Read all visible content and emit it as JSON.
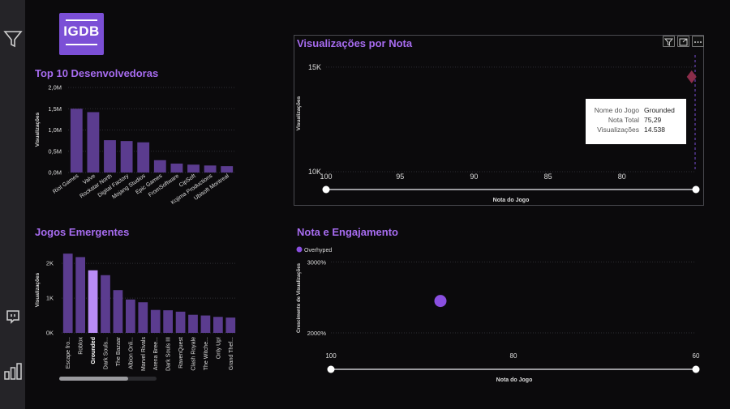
{
  "logo": {
    "text": "IGDB"
  },
  "top_devs": {
    "title": "Top 10 Desenvolvedoras",
    "ylabel": "Visualizações",
    "yticks": [
      "2,0M",
      "1,5M",
      "1,0M",
      "0,5M",
      "0,0M"
    ]
  },
  "emerging": {
    "title": "Jogos Emergentes",
    "ylabel": "Visualizações",
    "yticks": [
      "2K",
      "1K",
      "0K"
    ],
    "highlight_index": 2
  },
  "views_by_score": {
    "title": "Visualizações por Nota",
    "ylabel": "Visualizações",
    "yticks": [
      "15K",
      "10K"
    ],
    "xticks": [
      "100",
      "95",
      "90",
      "85",
      "80"
    ],
    "xlabel": "Nota do Jogo"
  },
  "tooltip": {
    "rows": [
      {
        "key": "Nome do Jogo",
        "value": "Grounded"
      },
      {
        "key": "Nota Total",
        "value": "75,29"
      },
      {
        "key": "Visualizações",
        "value": "14.538"
      }
    ]
  },
  "engagement": {
    "title": "Nota e Engajamento",
    "legend": "Overhyped",
    "ylabel": "Crescimento de Visualizações",
    "yticks": [
      "3000%",
      "2000%"
    ],
    "xticks": [
      "100",
      "80",
      "60"
    ],
    "xlabel": "Nota do Jogo"
  },
  "colors": {
    "accent": "#a76cf0",
    "bar": "#5b3c8f",
    "bar_highlight": "#b98cf5",
    "point": "#8a4fe0",
    "marker": "#8b2d4a"
  },
  "chart_data": [
    {
      "type": "bar",
      "title": "Top 10 Desenvolvedoras",
      "xlabel": "",
      "ylabel": "Visualizações",
      "ylim": [
        0,
        2000000
      ],
      "categories": [
        "Riot Games",
        "Valve",
        "Rockstar North",
        "Digital Factory",
        "Mojang Studios",
        "Epic Games",
        "FromSoftware",
        "CipSoft",
        "Kojima Productions",
        "Ubisoft Montreal"
      ],
      "values": [
        1500000,
        1420000,
        760000,
        740000,
        710000,
        290000,
        210000,
        185000,
        165000,
        150000
      ]
    },
    {
      "type": "bar",
      "title": "Jogos Emergentes",
      "xlabel": "",
      "ylabel": "Visualizações",
      "ylim": [
        0,
        2400
      ],
      "categories": [
        "Escape fro...",
        "Roblox",
        "Grounded",
        "Dark Souls...",
        "The Bazaar",
        "Albion Onli...",
        "Marvel Rivals",
        "Arena Bree...",
        "Dark Souls III",
        "RavenQuest",
        "Clash Royale",
        "The Witche...",
        "Only Up!",
        "Grand Thef..."
      ],
      "values": [
        2280,
        2180,
        1800,
        1660,
        1230,
        960,
        880,
        660,
        650,
        610,
        520,
        500,
        460,
        440
      ]
    },
    {
      "type": "scatter",
      "title": "Visualizações por Nota",
      "xlabel": "Nota do Jogo",
      "ylabel": "Visualizações",
      "xlim": [
        100,
        75
      ],
      "ylim": [
        10000,
        15500
      ],
      "points": [
        {
          "name": "Grounded",
          "x": 75.29,
          "y": 14538
        }
      ]
    },
    {
      "type": "scatter",
      "title": "Nota e Engajamento",
      "xlabel": "Nota do Jogo",
      "ylabel": "Crescimento de Visualizações",
      "xlim": [
        100,
        60
      ],
      "ylim": [
        1600,
        3200
      ],
      "series": [
        {
          "name": "Overhyped",
          "points": [
            {
              "x": 88,
              "y": 2450
            }
          ]
        }
      ]
    }
  ]
}
